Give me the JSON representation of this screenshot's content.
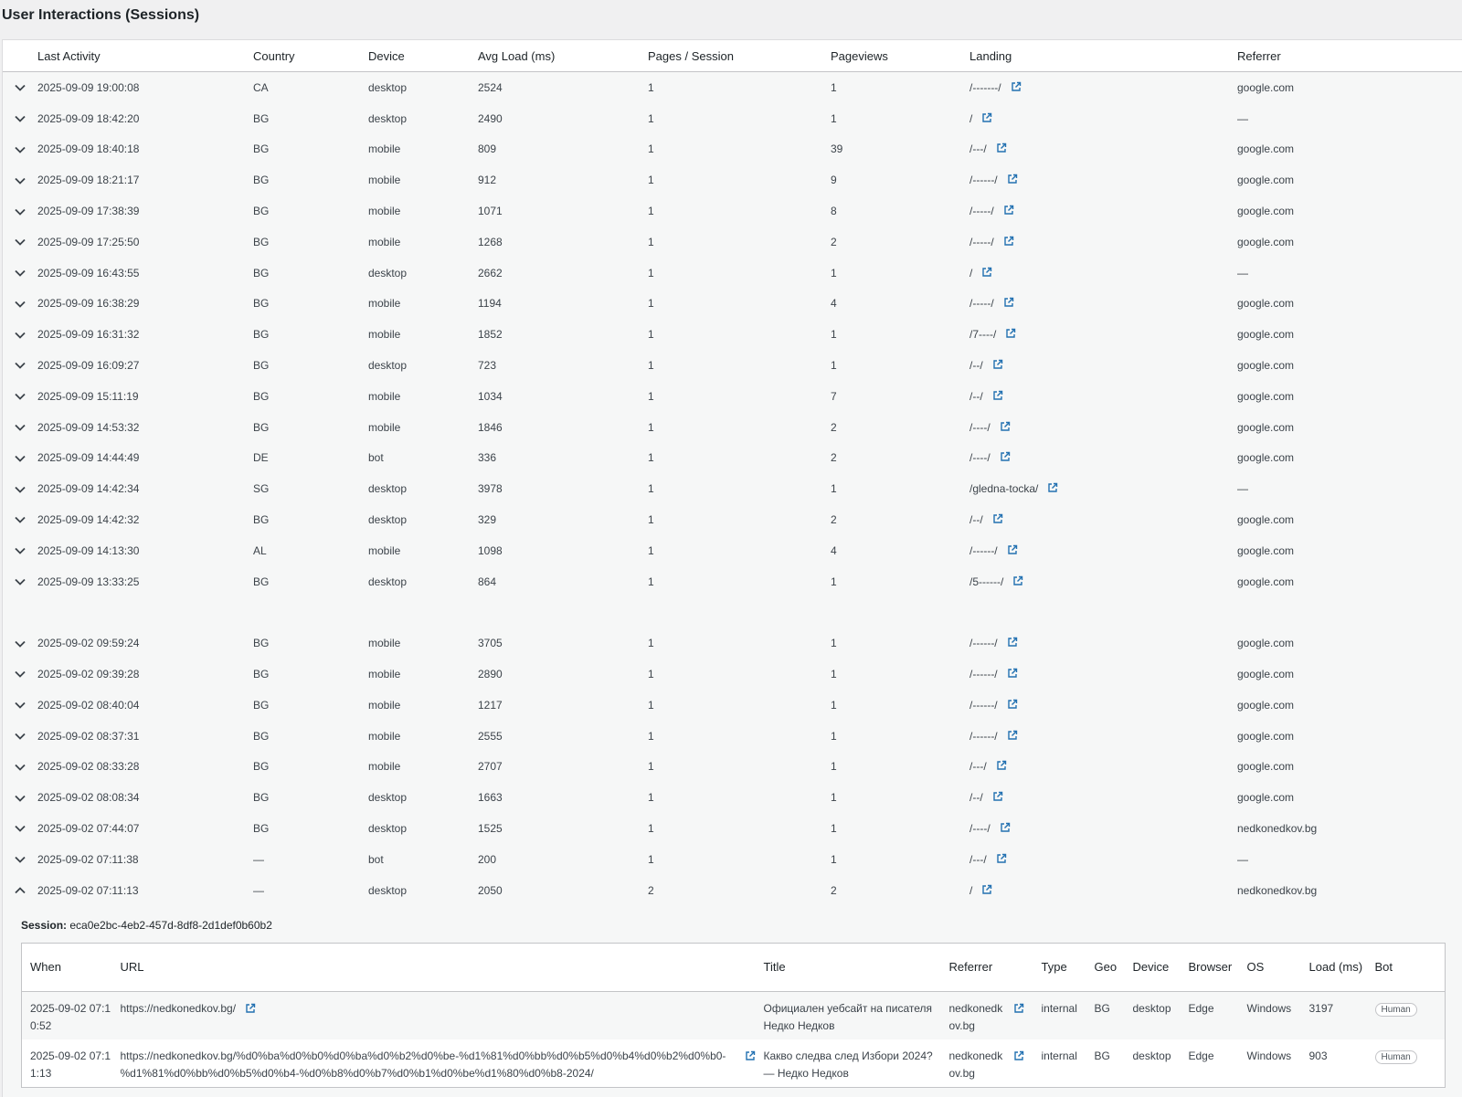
{
  "page": {
    "title": "User Interactions (Sessions)"
  },
  "sessions_table": {
    "columns": [
      "Last Activity",
      "Country",
      "Device",
      "Avg Load (ms)",
      "Pages / Session",
      "Pageviews",
      "Landing",
      "Referrer"
    ],
    "rows": [
      {
        "last": "2025-09-09 19:00:08",
        "country": "CA",
        "device": "desktop",
        "load": "2524",
        "pps": "1",
        "pv": "1",
        "landing": "/-------/",
        "ref": "google.com",
        "expanded": false
      },
      {
        "last": "2025-09-09 18:42:20",
        "country": "BG",
        "device": "desktop",
        "load": "2490",
        "pps": "1",
        "pv": "1",
        "landing": "/",
        "ref": "—",
        "expanded": false
      },
      {
        "last": "2025-09-09 18:40:18",
        "country": "BG",
        "device": "mobile",
        "load": "809",
        "pps": "1",
        "pv": "39",
        "landing": "/---/",
        "ref": "google.com",
        "expanded": false
      },
      {
        "last": "2025-09-09 18:21:17",
        "country": "BG",
        "device": "mobile",
        "load": "912",
        "pps": "1",
        "pv": "9",
        "landing": "/------/",
        "ref": "google.com",
        "expanded": false
      },
      {
        "last": "2025-09-09 17:38:39",
        "country": "BG",
        "device": "mobile",
        "load": "1071",
        "pps": "1",
        "pv": "8",
        "landing": "/-----/",
        "ref": "google.com",
        "expanded": false
      },
      {
        "last": "2025-09-09 17:25:50",
        "country": "BG",
        "device": "mobile",
        "load": "1268",
        "pps": "1",
        "pv": "2",
        "landing": "/-----/",
        "ref": "google.com",
        "expanded": false
      },
      {
        "last": "2025-09-09 16:43:55",
        "country": "BG",
        "device": "desktop",
        "load": "2662",
        "pps": "1",
        "pv": "1",
        "landing": "/",
        "ref": "—",
        "expanded": false
      },
      {
        "last": "2025-09-09 16:38:29",
        "country": "BG",
        "device": "mobile",
        "load": "1194",
        "pps": "1",
        "pv": "4",
        "landing": "/-----/",
        "ref": "google.com",
        "expanded": false
      },
      {
        "last": "2025-09-09 16:31:32",
        "country": "BG",
        "device": "mobile",
        "load": "1852",
        "pps": "1",
        "pv": "1",
        "landing": "/7----/",
        "ref": "google.com",
        "expanded": false
      },
      {
        "last": "2025-09-09 16:09:27",
        "country": "BG",
        "device": "desktop",
        "load": "723",
        "pps": "1",
        "pv": "1",
        "landing": "/--/",
        "ref": "google.com",
        "expanded": false
      },
      {
        "last": "2025-09-09 15:11:19",
        "country": "BG",
        "device": "mobile",
        "load": "1034",
        "pps": "1",
        "pv": "7",
        "landing": "/--/",
        "ref": "google.com",
        "expanded": false
      },
      {
        "last": "2025-09-09 14:53:32",
        "country": "BG",
        "device": "mobile",
        "load": "1846",
        "pps": "1",
        "pv": "2",
        "landing": "/----/",
        "ref": "google.com",
        "expanded": false
      },
      {
        "last": "2025-09-09 14:44:49",
        "country": "DE",
        "device": "bot",
        "load": "336",
        "pps": "1",
        "pv": "2",
        "landing": "/----/",
        "ref": "google.com",
        "expanded": false
      },
      {
        "last": "2025-09-09 14:42:34",
        "country": "SG",
        "device": "desktop",
        "load": "3978",
        "pps": "1",
        "pv": "1",
        "landing": "/gledna-tocka/",
        "ref": "—",
        "expanded": false
      },
      {
        "last": "2025-09-09 14:42:32",
        "country": "BG",
        "device": "desktop",
        "load": "329",
        "pps": "1",
        "pv": "2",
        "landing": "/--/",
        "ref": "google.com",
        "expanded": false
      },
      {
        "last": "2025-09-09 14:13:30",
        "country": "AL",
        "device": "mobile",
        "load": "1098",
        "pps": "1",
        "pv": "4",
        "landing": "/------/",
        "ref": "google.com",
        "expanded": false
      },
      {
        "last": "2025-09-09 13:33:25",
        "country": "BG",
        "device": "desktop",
        "load": "864",
        "pps": "1",
        "pv": "1",
        "landing": "/5------/",
        "ref": "google.com",
        "expanded": false
      },
      {
        "gap": true
      },
      {
        "last": "2025-09-02 09:59:24",
        "country": "BG",
        "device": "mobile",
        "load": "3705",
        "pps": "1",
        "pv": "1",
        "landing": "/------/",
        "ref": "google.com",
        "expanded": false
      },
      {
        "last": "2025-09-02 09:39:28",
        "country": "BG",
        "device": "mobile",
        "load": "2890",
        "pps": "1",
        "pv": "1",
        "landing": "/------/",
        "ref": "google.com",
        "expanded": false
      },
      {
        "last": "2025-09-02 08:40:04",
        "country": "BG",
        "device": "mobile",
        "load": "1217",
        "pps": "1",
        "pv": "1",
        "landing": "/------/",
        "ref": "google.com",
        "expanded": false
      },
      {
        "last": "2025-09-02 08:37:31",
        "country": "BG",
        "device": "mobile",
        "load": "2555",
        "pps": "1",
        "pv": "1",
        "landing": "/------/",
        "ref": "google.com",
        "expanded": false
      },
      {
        "last": "2025-09-02 08:33:28",
        "country": "BG",
        "device": "mobile",
        "load": "2707",
        "pps": "1",
        "pv": "1",
        "landing": "/---/",
        "ref": "google.com",
        "expanded": false
      },
      {
        "last": "2025-09-02 08:08:34",
        "country": "BG",
        "device": "desktop",
        "load": "1663",
        "pps": "1",
        "pv": "1",
        "landing": "/--/",
        "ref": "google.com",
        "expanded": false
      },
      {
        "last": "2025-09-02 07:44:07",
        "country": "BG",
        "device": "desktop",
        "load": "1525",
        "pps": "1",
        "pv": "1",
        "landing": "/----/",
        "ref": "nedkonedkov.bg",
        "expanded": false
      },
      {
        "last": "2025-09-02 07:11:38",
        "country": "—",
        "device": "bot",
        "load": "200",
        "pps": "1",
        "pv": "1",
        "landing": "/---/",
        "ref": "—",
        "expanded": false
      },
      {
        "last": "2025-09-02 07:11:13",
        "country": "—",
        "device": "desktop",
        "load": "2050",
        "pps": "2",
        "pv": "2",
        "landing": "/",
        "ref": "nedkonedkov.bg",
        "expanded": true
      }
    ]
  },
  "session_detail": {
    "label": "Session:",
    "id": "eca0e2bc-4eb2-457d-8df8-2d1def0b60b2",
    "columns": [
      "When",
      "URL",
      "Title",
      "Referrer",
      "Type",
      "Geo",
      "Device",
      "Browser",
      "OS",
      "Load (ms)",
      "Bot"
    ],
    "rows": [
      {
        "when": "2025-09-02 07:10:52",
        "url": "https://nedkonedkov.bg/",
        "title": "Официален уебсайт на писателя Недко Недков",
        "referrer": "nedkonedkov.bg",
        "type": "internal",
        "geo": "BG",
        "device": "desktop",
        "browser": "Edge",
        "os": "Windows",
        "load": "3197",
        "bot": "Human"
      },
      {
        "when": "2025-09-02 07:11:13",
        "url": "https://nedkonedkov.bg/%d0%ba%d0%b0%d0%ba%d0%b2%d0%be-%d1%81%d0%bb%d0%b5%d0%b4%d0%b2%d0%b0-%d1%81%d0%bb%d0%b5%d0%b4-%d0%b8%d0%b7%d0%b1%d0%be%d1%80%d0%b8-2024/",
        "title": "Какво следва след Избори 2024? — Недко Недков",
        "referrer": "nedkonedkov.bg",
        "type": "internal",
        "geo": "BG",
        "device": "desktop",
        "browser": "Edge",
        "os": "Windows",
        "load": "903",
        "bot": "Human"
      }
    ]
  },
  "icons": {
    "expand": "chevron-down-icon",
    "collapse": "chevron-up-icon",
    "external": "external-link-icon"
  },
  "colors": {
    "link": "#2271b1",
    "text": "#3c434a",
    "header_bg": "#ffffff",
    "row_bg": "#f6f7f7"
  }
}
